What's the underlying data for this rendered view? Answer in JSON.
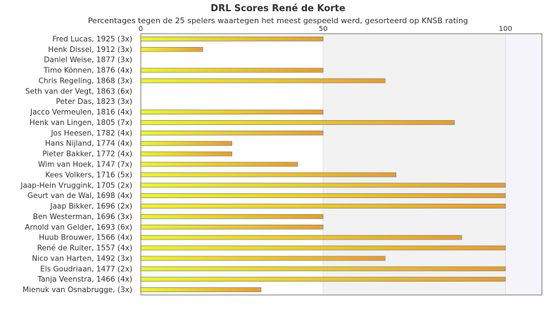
{
  "chart_data": {
    "type": "bar",
    "orientation": "horizontal",
    "title": "DRL Scores René de Korte",
    "subtitle": "Percentages tegen de 25 spelers waartegen het meest gespeeld werd, gesorteerd op KNSB rating",
    "xlim": [
      0,
      110
    ],
    "xticks": [
      0,
      50,
      100
    ],
    "grid": true,
    "categories": [
      "Fred Lucas, 1925 (3x)",
      "Henk Dissel, 1912 (3x)",
      "Daniel Weise, 1877 (3x)",
      "Timo Können, 1876 (4x)",
      "Chris Regeling, 1868 (3x)",
      "Seth van der Vegt, 1863 (6x)",
      "Peter Das, 1823 (3x)",
      "Jacco Vermeulen, 1816 (4x)",
      "Henk van Lingen, 1805 (7x)",
      "Jos Heesen, 1782 (4x)",
      "Hans Nijland, 1774 (4x)",
      "Pieter Bakker, 1772 (4x)",
      "Wim van Hoek, 1747 (7x)",
      "Kees Volkers, 1716 (5x)",
      "Jaap-Hein Vruggink, 1705 (2x)",
      "Geurt van de Wal, 1698 (4x)",
      "Jaap Bikker, 1696 (2x)",
      "Ben Westerman, 1696 (3x)",
      "Arnold van Gelder, 1693 (6x)",
      "Huub Brouwer, 1566 (4x)",
      "René de Ruiter, 1557 (4x)",
      "Nico van Harten, 1492 (3x)",
      "Els Goudriaan, 1477 (2x)",
      "Tanja Veenstra, 1466 (4x)",
      "Mienuk van Osnabrugge,  (3x)"
    ],
    "values": [
      50,
      17,
      0,
      50,
      67,
      0,
      0,
      50,
      86,
      50,
      25,
      25,
      43,
      70,
      100,
      100,
      100,
      50,
      50,
      88,
      100,
      67,
      100,
      100,
      33
    ],
    "colors": {
      "bar_start": "#f5f515",
      "bar_end": "#f29a1a",
      "bar_stroke": "#6b8fc0",
      "plot_bg_a": "#ffffff",
      "plot_bg_b": "#f2f2f2",
      "plot_bg_c": "#f4f4fa"
    }
  }
}
